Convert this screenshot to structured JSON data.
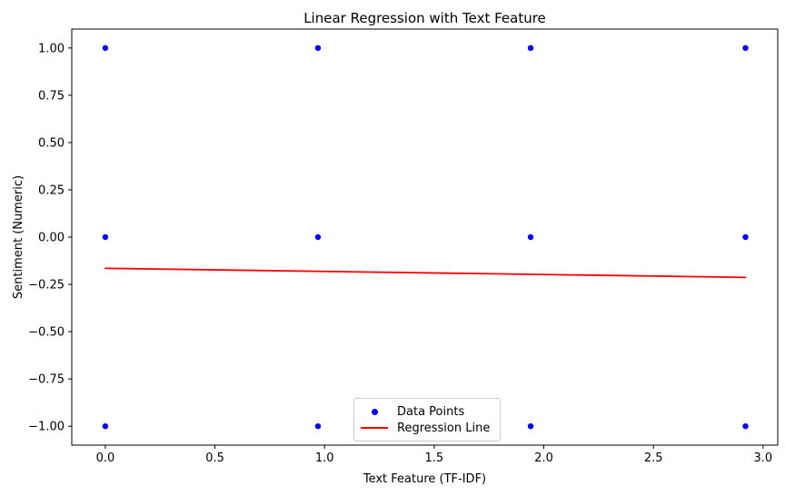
{
  "figure": {
    "background": "#ffffff",
    "axes_color": "#000000",
    "text_color": "#000000"
  },
  "chart_data": {
    "type": "scatter",
    "title": "Linear Regression with Text Feature",
    "xlabel": "Text Feature (TF-IDF)",
    "ylabel": "Sentiment (Numeric)",
    "xlim": [
      -0.153,
      3.067
    ],
    "ylim": [
      -1.1,
      1.1
    ],
    "grid": false,
    "x_ticks": {
      "values": [
        0.0,
        0.5,
        1.0,
        1.5,
        2.0,
        2.5,
        3.0
      ],
      "labels": [
        "0.0",
        "0.5",
        "1.0",
        "1.5",
        "2.0",
        "2.5",
        "3.0"
      ]
    },
    "y_ticks": {
      "values": [
        -1.0,
        -0.75,
        -0.5,
        -0.25,
        0.0,
        0.25,
        0.5,
        0.75,
        1.0
      ],
      "labels": [
        "−1.00",
        "−0.75",
        "−0.50",
        "−0.25",
        "0.00",
        "0.25",
        "0.50",
        "0.75",
        "1.00"
      ]
    },
    "series": [
      {
        "name": "Data Points",
        "type": "scatter",
        "color": "#0000ff",
        "marker_size": 3.2,
        "points": [
          [
            0.0,
            1.0
          ],
          [
            0.97,
            1.0
          ],
          [
            1.94,
            1.0
          ],
          [
            2.92,
            1.0
          ],
          [
            0.0,
            0.0
          ],
          [
            0.97,
            0.0
          ],
          [
            1.94,
            0.0
          ],
          [
            2.92,
            0.0
          ],
          [
            0.0,
            -1.0
          ],
          [
            0.97,
            -1.0
          ],
          [
            1.94,
            -1.0
          ],
          [
            2.92,
            -1.0
          ]
        ]
      },
      {
        "name": "Regression Line",
        "type": "line",
        "color": "#ff0000",
        "line_width": 1.8,
        "points": [
          [
            0.0,
            -0.165
          ],
          [
            2.92,
            -0.213
          ]
        ]
      }
    ],
    "legend": {
      "position": "lower center",
      "entries": [
        {
          "label": "Data Points",
          "marker": "dot",
          "color": "#0000ff"
        },
        {
          "label": "Regression Line",
          "marker": "line",
          "color": "#ff0000"
        }
      ]
    }
  }
}
